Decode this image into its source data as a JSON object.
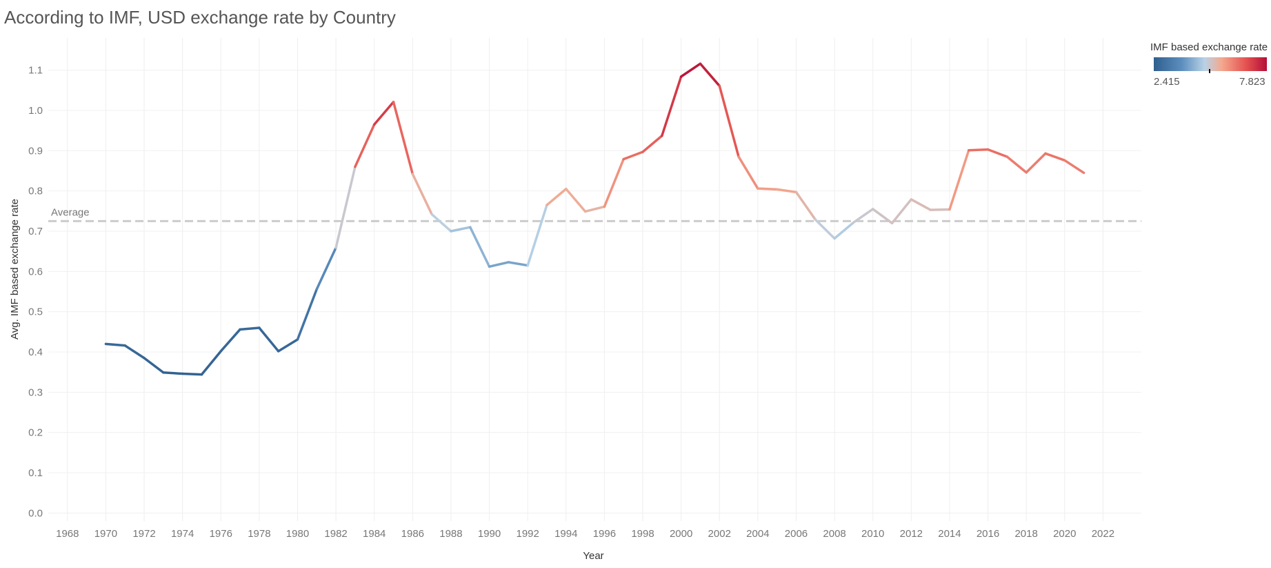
{
  "title": "According to IMF, USD exchange rate by Country",
  "legend": {
    "title": "IMF based exchange rate",
    "min_label": "2.415",
    "max_label": "7.823",
    "min": 2.415,
    "max": 7.823,
    "marker": 5.1
  },
  "reference_line": {
    "label": "Average",
    "value": 0.725
  },
  "chart_data": {
    "type": "line",
    "xlabel": "Year",
    "ylabel": "Avg. IMF based exchange rate",
    "xlim": [
      1967,
      2024
    ],
    "ylim": [
      -0.02,
      1.18
    ],
    "x_ticks": [
      1968,
      1970,
      1972,
      1974,
      1976,
      1978,
      1980,
      1982,
      1984,
      1986,
      1988,
      1990,
      1992,
      1994,
      1996,
      1998,
      2000,
      2002,
      2004,
      2006,
      2008,
      2010,
      2012,
      2014,
      2016,
      2018,
      2020,
      2022
    ],
    "y_ticks": [
      0.0,
      0.1,
      0.2,
      0.3,
      0.4,
      0.5,
      0.6,
      0.7,
      0.8,
      0.9,
      1.0,
      1.1
    ],
    "y_tick_labels": [
      "0.0",
      "0.1",
      "0.2",
      "0.3",
      "0.4",
      "0.5",
      "0.6",
      "0.7",
      "0.8",
      "0.9",
      "1.0",
      "1.1"
    ],
    "grid": true,
    "legend_placement": "top-right",
    "color_scale": [
      "#2f5f8f",
      "#5d8fbe",
      "#b9d2e6",
      "#f4a88e",
      "#e4504f",
      "#b40f38"
    ],
    "x": [
      1970,
      1971,
      1972,
      1973,
      1974,
      1975,
      1976,
      1977,
      1978,
      1979,
      1980,
      1981,
      1982,
      1983,
      1984,
      1985,
      1986,
      1987,
      1988,
      1989,
      1990,
      1991,
      1992,
      1993,
      1994,
      1995,
      1996,
      1997,
      1998,
      1999,
      2000,
      2001,
      2002,
      2003,
      2004,
      2005,
      2006,
      2007,
      2008,
      2009,
      2010,
      2011,
      2012,
      2013,
      2014,
      2015,
      2016,
      2017,
      2018,
      2019,
      2020,
      2021
    ],
    "y": [
      0.42,
      0.416,
      0.385,
      0.349,
      0.346,
      0.344,
      0.402,
      0.456,
      0.46,
      0.402,
      0.431,
      0.556,
      0.659,
      0.86,
      0.965,
      1.021,
      0.842,
      0.742,
      0.7,
      0.71,
      0.612,
      0.623,
      0.615,
      0.765,
      0.805,
      0.749,
      0.761,
      0.879,
      0.897,
      0.937,
      1.084,
      1.116,
      1.061,
      0.885,
      0.806,
      0.804,
      0.797,
      0.729,
      0.682,
      0.722,
      0.755,
      0.72,
      0.779,
      0.753,
      0.754,
      0.901,
      0.903,
      0.885,
      0.846,
      0.893,
      0.876,
      0.845
    ],
    "color_values": [
      2.7,
      2.7,
      2.6,
      2.5,
      2.5,
      2.5,
      2.6,
      2.7,
      2.7,
      2.6,
      2.7,
      3.3,
      3.9,
      6.2,
      7.0,
      7.3,
      5.8,
      5.2,
      4.6,
      4.6,
      4.1,
      4.1,
      4.1,
      5.5,
      5.7,
      5.4,
      5.5,
      6.4,
      6.5,
      6.8,
      7.6,
      7.8,
      7.3,
      6.2,
      5.8,
      5.8,
      5.6,
      5.2,
      4.7,
      4.8,
      5.3,
      5.0,
      5.4,
      5.2,
      5.3,
      6.4,
      6.5,
      6.4,
      6.1,
      6.4,
      6.3,
      6.2
    ]
  }
}
